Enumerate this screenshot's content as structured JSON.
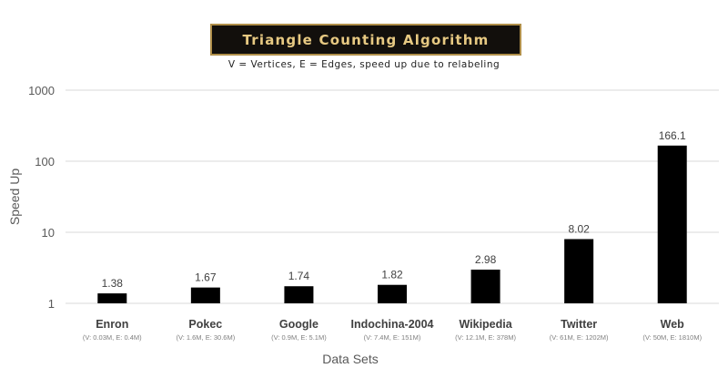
{
  "chart_data": {
    "type": "bar",
    "title": "Triangle Counting Algorithm",
    "subtitle": "V = Vertices, E = Edges, speed up due to relabeling",
    "xlabel": "Data Sets",
    "ylabel": "Speed Up",
    "yscale": "log",
    "ylim": [
      1,
      1000
    ],
    "yticks": [
      1,
      10,
      100,
      1000
    ],
    "ytick_labels": [
      "1",
      "10",
      "100",
      "1000"
    ],
    "grid": true,
    "legend": "none",
    "categories": [
      "Enron",
      "Pokec",
      "Google",
      "Indochina-2004",
      "Wikipedia",
      "Twitter",
      "Web"
    ],
    "category_details": [
      "(V: 0.03M, E: 0.4M)",
      "(V: 1.6M, E: 30.6M)",
      "(V: 0.9M, E: 5.1M)",
      "(V: 7.4M, E: 151M)",
      "(V: 12.1M, E: 378M)",
      "(V: 61M, E: 1202M)",
      "(V: 50M, E: 1810M)"
    ],
    "values": [
      1.38,
      1.67,
      1.74,
      1.82,
      2.98,
      8.02,
      166.1
    ],
    "value_labels": [
      "1.38",
      "1.67",
      "1.74",
      "1.82",
      "2.98",
      "8.02",
      "166.1"
    ],
    "colors": {
      "bar": "#000000",
      "grid": "#d9d9d9",
      "axis_text": "#595959",
      "title_bg": "#120f0c",
      "title_border": "#b08f4a",
      "title_text": "#e7c982"
    }
  }
}
